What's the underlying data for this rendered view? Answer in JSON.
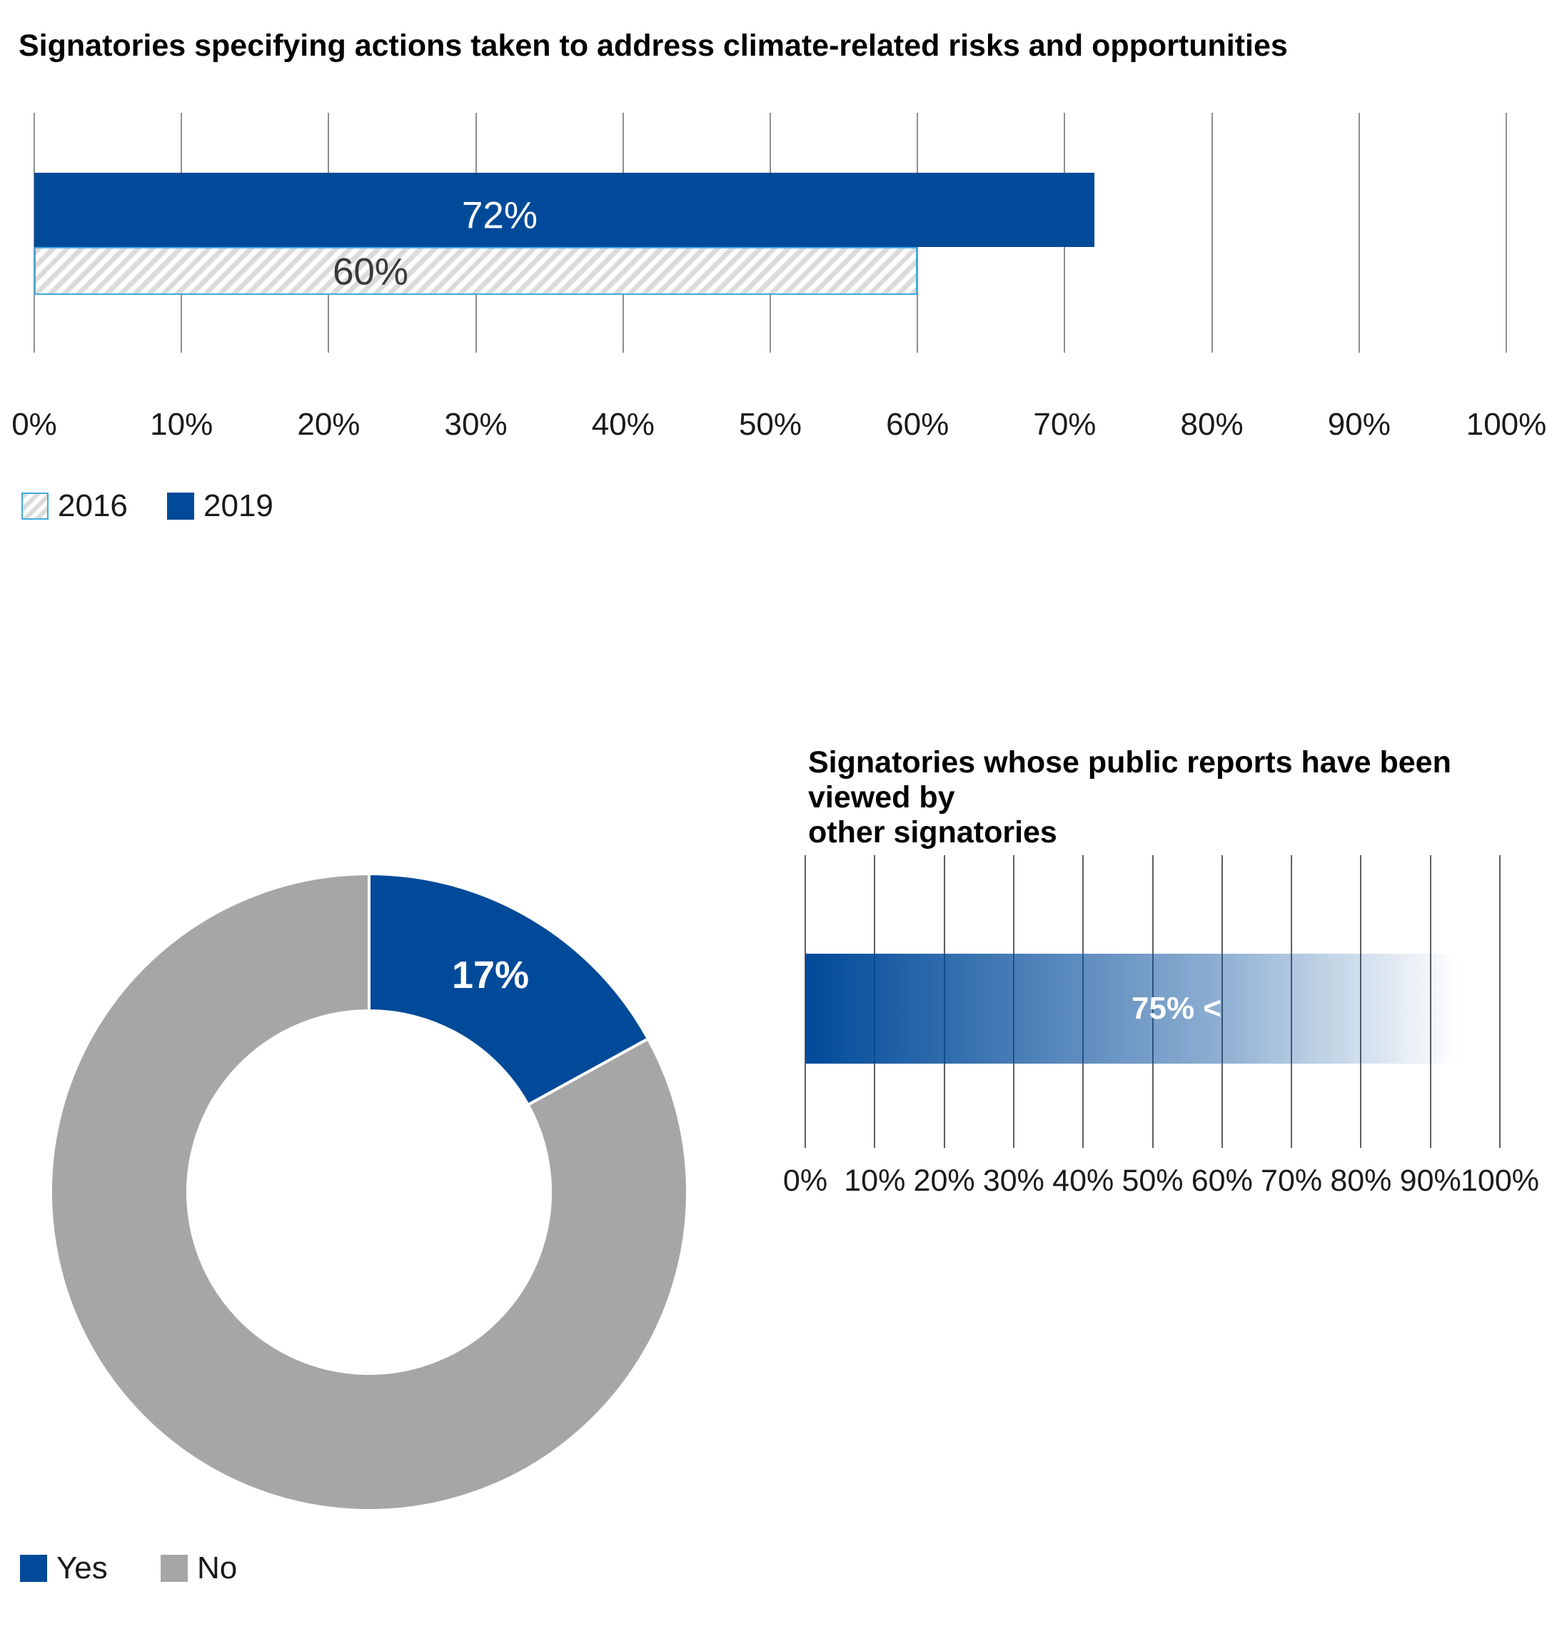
{
  "colors": {
    "blue": "#004A99",
    "gray": "#A6A6A6",
    "hatch_gray": "#DBDBDB",
    "hatch_border_light_blue": "#41AADC",
    "gridline_top_chart": "#8F8F8F",
    "gridline_right_chart": "#5E5E5E",
    "text": "#1A1A1A"
  },
  "chart_data": [
    {
      "type": "bar",
      "orientation": "horizontal",
      "title": "Signatories specifying actions taken to address climate-related risks and opportunities",
      "categories": [
        "2019",
        "2016"
      ],
      "values": [
        72,
        60
      ],
      "data_labels": [
        "72%",
        "60%"
      ],
      "series_styles": [
        "solid blue",
        "diagonal hatch with light-blue border"
      ],
      "xlim": [
        0,
        100
      ],
      "x_ticks": [
        "0%",
        "10%",
        "20%",
        "30%",
        "40%",
        "50%",
        "60%",
        "70%",
        "80%",
        "90%",
        "100%"
      ],
      "grid": "vertical gridlines every 10%",
      "legend": [
        {
          "label": "2016",
          "swatch": "hatched"
        },
        {
          "label": "2019",
          "swatch": "solid-blue"
        }
      ],
      "legend_position": "bottom-left"
    },
    {
      "type": "pie",
      "subtype": "donut",
      "start_angle": "12 o'clock, clockwise",
      "slices": [
        {
          "label": "Yes",
          "value": 17,
          "data_label": "17%",
          "color": "#004A99"
        },
        {
          "label": "No",
          "value": 83,
          "data_label": "",
          "color": "#A6A6A6"
        }
      ],
      "legend": [
        "Yes",
        "No"
      ],
      "legend_position": "bottom-left"
    },
    {
      "type": "bar",
      "orientation": "horizontal",
      "title": "Signatories whose public reports have been viewed by other signatories",
      "title_lines": [
        "Signatories whose public reports have been viewed by",
        "other signatories"
      ],
      "categories": [
        "Signatories"
      ],
      "values": [
        75
      ],
      "data_labels": [
        "75% <"
      ],
      "bar_style": "blue gradient fading to white toward 100%",
      "xlim": [
        0,
        100
      ],
      "x_ticks": [
        "0%",
        "10%",
        "20%",
        "30%",
        "40%",
        "50%",
        "60%",
        "70%",
        "80%",
        "90%",
        "100%"
      ],
      "grid": "vertical gridlines every 10%"
    }
  ]
}
